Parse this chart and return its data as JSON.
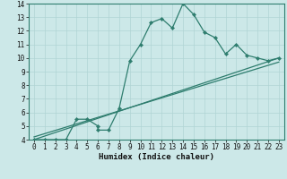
{
  "title": "",
  "xlabel": "Humidex (Indice chaleur)",
  "bg_color": "#cce8e8",
  "grid_color": "#b0d4d4",
  "line_color": "#2e7d6e",
  "xlim": [
    -0.5,
    23.5
  ],
  "ylim": [
    4,
    14
  ],
  "xticks": [
    0,
    1,
    2,
    3,
    4,
    5,
    6,
    7,
    8,
    9,
    10,
    11,
    12,
    13,
    14,
    15,
    16,
    17,
    18,
    19,
    20,
    21,
    22,
    23
  ],
  "yticks": [
    4,
    5,
    6,
    7,
    8,
    9,
    10,
    11,
    12,
    13,
    14
  ],
  "main_line_x": [
    0,
    1,
    2,
    3,
    4,
    5,
    6,
    6,
    7,
    8,
    9,
    10,
    11,
    12,
    13,
    14,
    15,
    16,
    17,
    18,
    19,
    20,
    21,
    22,
    23
  ],
  "main_line_y": [
    4,
    4,
    4,
    4,
    5.5,
    5.5,
    5.0,
    4.7,
    4.7,
    6.3,
    9.8,
    11.0,
    12.6,
    12.9,
    12.2,
    14.0,
    13.2,
    11.9,
    11.5,
    10.3,
    11.0,
    10.2,
    10.0,
    9.8,
    10.0
  ],
  "trend_line1_x": [
    0,
    23
  ],
  "trend_line1_y": [
    4.0,
    10.0
  ],
  "trend_line2_x": [
    0,
    23
  ],
  "trend_line2_y": [
    4.2,
    9.7
  ],
  "tick_fontsize": 5.5,
  "xlabel_fontsize": 6.5
}
